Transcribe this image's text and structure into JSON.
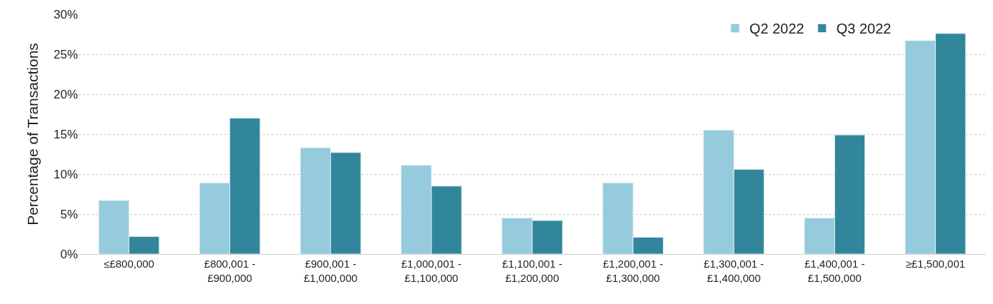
{
  "chart_data": {
    "type": "bar",
    "ylabel": "Percentage of Transactions",
    "categories": [
      "≤£800,000",
      "£800,001 -\n£900,000",
      "£900,001 -\n£1,000,000",
      "£1,000,001 -\n£1,100,000",
      "£1,100,001 -\n£1,200,000",
      "£1,200,001 -\n£1,300,000",
      "£1,300,001 -\n£1,400,000",
      "£1,400,001 -\n£1,500,000",
      "≥£1,500,001"
    ],
    "series": [
      {
        "name": "Q2 2022",
        "color": "#95cbdc",
        "values": [
          6.7,
          8.9,
          13.3,
          11.1,
          4.5,
          8.9,
          15.5,
          4.5,
          26.7
        ]
      },
      {
        "name": "Q3 2022",
        "color": "#31869b",
        "values": [
          2.2,
          17.0,
          12.7,
          8.5,
          4.2,
          2.1,
          10.6,
          14.9,
          27.6
        ]
      }
    ],
    "ylim": [
      0,
      30
    ],
    "yticks": [
      {
        "value": 0,
        "label": "0%"
      },
      {
        "value": 5,
        "label": "5%"
      },
      {
        "value": 10,
        "label": "10%"
      },
      {
        "value": 15,
        "label": "15%"
      },
      {
        "value": 20,
        "label": "20%"
      },
      {
        "value": 25,
        "label": "25%"
      },
      {
        "value": 30,
        "label": "30%"
      }
    ],
    "grid": "y",
    "legend": "top right"
  }
}
